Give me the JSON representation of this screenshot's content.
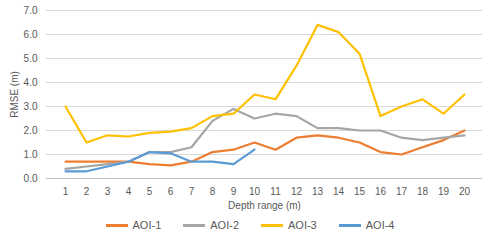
{
  "chart_data": {
    "type": "line",
    "x_label": "Depth range (m)",
    "y_label": "RMSE (m)",
    "categories": [
      1,
      2,
      3,
      4,
      5,
      6,
      7,
      8,
      9,
      10,
      11,
      12,
      13,
      14,
      15,
      16,
      17,
      18,
      19,
      20
    ],
    "ylim": [
      0,
      7
    ],
    "yticks": [
      0,
      1,
      2,
      3,
      4,
      5,
      6,
      7
    ],
    "grid": true,
    "legend": "bottom",
    "series": [
      {
        "name": "AOI-1",
        "color": "#ed7d31",
        "values": [
          0.7,
          0.7,
          0.7,
          0.7,
          0.6,
          0.55,
          0.7,
          1.1,
          1.2,
          1.5,
          1.2,
          1.7,
          1.8,
          1.7,
          1.5,
          1.1,
          1.0,
          1.3,
          1.6,
          2.0
        ]
      },
      {
        "name": "AOI-2",
        "color": "#a5a5a5",
        "values": [
          0.4,
          0.5,
          0.6,
          0.7,
          1.1,
          1.1,
          1.3,
          2.4,
          2.9,
          2.5,
          2.7,
          2.6,
          2.1,
          2.1,
          2.0,
          2.0,
          1.7,
          1.6,
          1.7,
          1.8
        ]
      },
      {
        "name": "AOI-3",
        "color": "#ffc000",
        "values": [
          3.0,
          1.5,
          1.8,
          1.75,
          1.9,
          1.95,
          2.1,
          2.6,
          2.7,
          3.5,
          3.3,
          4.7,
          6.4,
          6.1,
          5.2,
          2.6,
          3.0,
          3.3,
          2.7,
          3.5
        ]
      },
      {
        "name": "AOI-4",
        "color": "#5b9bd5",
        "values": [
          0.3,
          0.3,
          0.5,
          0.7,
          1.1,
          1.05,
          0.7,
          0.7,
          0.6,
          1.2,
          null,
          null,
          null,
          null,
          null,
          null,
          null,
          null,
          null,
          null
        ]
      }
    ]
  }
}
